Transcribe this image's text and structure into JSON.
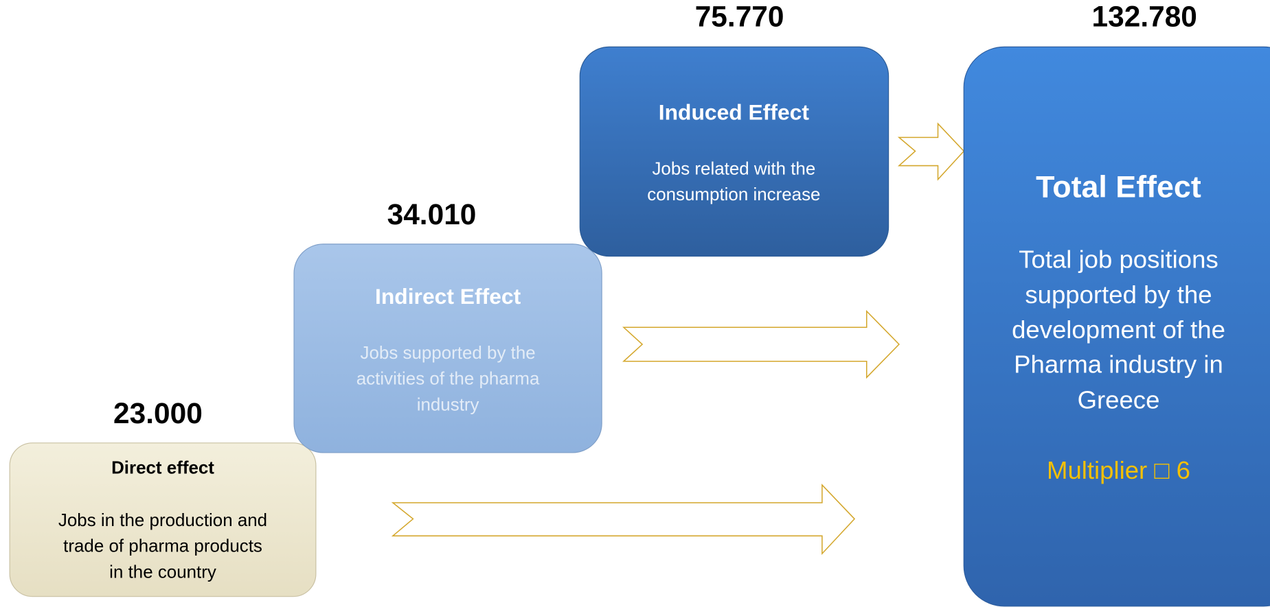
{
  "nodes": [
    {
      "value": "23.000",
      "title": "Direct effect",
      "lines": [
        "Jobs in the production and",
        "trade of pharma products",
        "in the country"
      ]
    },
    {
      "value": "34.010",
      "title": "Indirect Effect",
      "lines": [
        "Jobs supported by the",
        "activities of the pharma",
        "industry"
      ]
    },
    {
      "value": "75.770",
      "title": "Induced Effect",
      "lines": [
        "Jobs related with the",
        "consumption increase"
      ]
    },
    {
      "value": "132.780",
      "title": "Total Effect",
      "lines": [
        "Total job positions",
        "supported by the",
        "development of the",
        "Pharma industry in",
        "Greece"
      ],
      "note": "Multiplier □ 6"
    }
  ]
}
